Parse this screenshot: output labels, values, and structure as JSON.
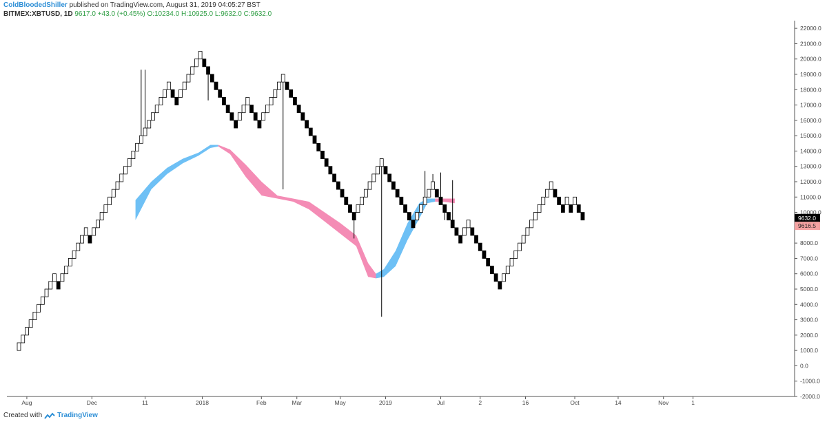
{
  "header": {
    "author": "ColdBloodedShiller",
    "published_text": "published on TradingView.com, August 31, 2019 04:05:27 BST"
  },
  "legend": {
    "symbol": "BITMEX:XBTUSD, 1D",
    "last": "9617.0",
    "change": "+43.0 (+0.45%)",
    "o": "O:10234.0",
    "h": "H:10925.0",
    "l": "L:9632.0",
    "c": "C:9632.0"
  },
  "footer": {
    "created_with": "Created with",
    "brand": "TradingView",
    "logo_icon": "tradingview-logo-icon"
  },
  "chart_data": {
    "type": "renko",
    "box_size": 500,
    "ylim": [
      -2000,
      22500
    ],
    "y_ticks": [
      -2000,
      -1000,
      0,
      1000,
      2000,
      3000,
      4000,
      5000,
      6000,
      7000,
      8000,
      9000,
      10000,
      11000,
      12000,
      13000,
      14000,
      15000,
      16000,
      17000,
      18000,
      19000,
      20000,
      21000,
      22000
    ],
    "y_tick_labels": [
      "-2000.0",
      "-1000.0",
      "0.0",
      "1000.0",
      "2000.0",
      "3000.0",
      "4000.0",
      "5000.0",
      "6000.0",
      "7000.0",
      "8000.0",
      "9000.0",
      "10000.0",
      "11000.0",
      "12000.0",
      "13000.0",
      "14000.0",
      "15000.0",
      "16000.0",
      "17000.0",
      "18000.0",
      "19000.0",
      "20000.0",
      "21000.0",
      "22000.0"
    ],
    "x_labels": [
      "Aug",
      "Dec",
      "11",
      "2018",
      "Feb",
      "Mar",
      "May",
      "2019",
      "Jul",
      "2",
      "16",
      "Oct",
      "14",
      "Nov",
      "1"
    ],
    "x_label_brick_index": [
      2,
      18.5,
      32,
      46.5,
      61.5,
      70.5,
      81.5,
      93,
      107,
      117,
      128.5,
      141,
      152,
      163.5,
      171
    ],
    "bricks": [
      {
        "dir": "up",
        "count": 10
      },
      {
        "dir": "down",
        "count": 1
      },
      {
        "dir": "up",
        "count": 7
      },
      {
        "dir": "down",
        "count": 1
      },
      {
        "dir": "up",
        "count": 20
      },
      {
        "dir": "down",
        "count": 2
      },
      {
        "dir": "up",
        "count": 6
      },
      {
        "dir": "down",
        "count": 9
      },
      {
        "dir": "up",
        "count": 3
      },
      {
        "dir": "down",
        "count": 3
      },
      {
        "dir": "up",
        "count": 6
      },
      {
        "dir": "down",
        "count": 18
      },
      {
        "dir": "up",
        "count": 7
      },
      {
        "dir": "down",
        "count": 8
      },
      {
        "dir": "up",
        "count": 5
      },
      {
        "dir": "down",
        "count": 7
      },
      {
        "dir": "up",
        "count": 2
      },
      {
        "dir": "down",
        "count": 8
      },
      {
        "dir": "up",
        "count": 13
      },
      {
        "dir": "down",
        "count": 3
      },
      {
        "dir": "up",
        "count": 1
      },
      {
        "dir": "down",
        "count": 1
      },
      {
        "dir": "up",
        "count": 1
      },
      {
        "dir": "down",
        "count": 2
      }
    ],
    "first_brick_bottom": 1000,
    "ribbon_segments": [
      {
        "color": "#6ec0f5",
        "points": [
          [
            30,
            9500,
            10800
          ],
          [
            34,
            11500,
            12000
          ],
          [
            38,
            12500,
            12900
          ],
          [
            42,
            13200,
            13500
          ],
          [
            46,
            13700,
            13900
          ],
          [
            49,
            14200,
            14400
          ],
          [
            51,
            14300,
            14400
          ]
        ]
      },
      {
        "color": "#f48cb5",
        "points": [
          [
            51,
            14300,
            14400
          ],
          [
            54,
            13800,
            14100
          ],
          [
            58,
            12300,
            13100
          ],
          [
            62,
            11100,
            12000
          ],
          [
            66,
            10900,
            11100
          ],
          [
            70,
            10700,
            10900
          ],
          [
            74,
            10200,
            10700
          ],
          [
            78,
            9400,
            10000
          ],
          [
            82,
            8600,
            9300
          ],
          [
            86,
            7800,
            8500
          ],
          [
            89,
            5800,
            6700
          ],
          [
            91,
            5700,
            6000
          ]
        ]
      },
      {
        "color": "#6ec0f5",
        "points": [
          [
            91,
            5700,
            6000
          ],
          [
            93,
            5800,
            6300
          ],
          [
            96,
            6500,
            7500
          ],
          [
            99,
            8200,
            9300
          ],
          [
            102,
            9600,
            10600
          ],
          [
            104,
            10600,
            10900
          ],
          [
            106,
            10700,
            10900
          ]
        ]
      },
      {
        "color": "#f48cb5",
        "points": [
          [
            106,
            10700,
            10900
          ],
          [
            108,
            10700,
            10900
          ],
          [
            111,
            10600,
            10900
          ]
        ]
      }
    ],
    "wicks": [
      {
        "i": 32,
        "y": 19300
      },
      {
        "i": 31,
        "y": 19300
      },
      {
        "i": 48,
        "y": 17300
      },
      {
        "i": 67,
        "y": 11500
      },
      {
        "i": 103,
        "y": 12700
      },
      {
        "i": 105,
        "y": 12500
      },
      {
        "i": 107,
        "y": 12600
      },
      {
        "i": 110,
        "y": 12100
      },
      {
        "i": 92,
        "y": 3200
      },
      {
        "i": 108,
        "y": 9500
      },
      {
        "i": 85,
        "y": 8300
      }
    ],
    "price_labels": [
      {
        "value": 9632.0,
        "text": "9632.0",
        "bg": "#000000",
        "fg": "#ffffff"
      },
      {
        "value": 9616.5,
        "text": "9616.5",
        "bg": "#f5a3a3",
        "fg": "#222222"
      }
    ]
  },
  "colors": {
    "up_fill": "#ffffff",
    "down_fill": "#000000",
    "border": "#000000",
    "axis": "#555555",
    "text": "#444444"
  }
}
